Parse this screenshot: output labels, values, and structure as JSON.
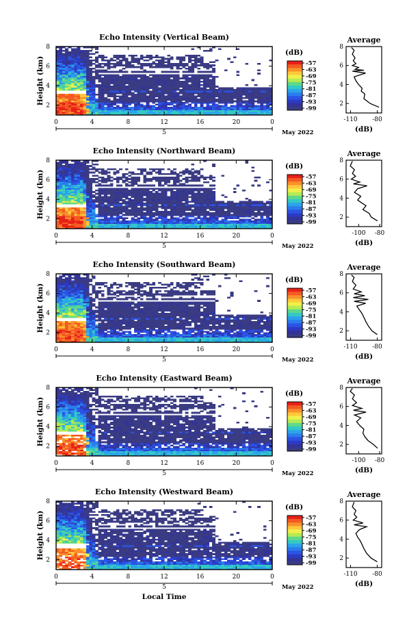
{
  "chart_data": [
    {
      "type": "heatmap",
      "title": "Echo Intensity (Vertical Beam)",
      "ylabel": "Height (km)",
      "xlabel": "",
      "xticks": [
        "0",
        "4",
        "8",
        "12",
        "16",
        "20",
        "0"
      ],
      "xdate": "5",
      "month_label": "May 2022",
      "ylim": [
        1,
        8
      ],
      "yticks": [
        "2",
        "4",
        "6",
        "8"
      ],
      "colorbar": {
        "unit": "(dB)",
        "ticks": [
          "-57",
          "-63",
          "-69",
          "-75",
          "-81",
          "-87",
          "-93",
          "-99"
        ]
      },
      "average": {
        "title": "Average",
        "xlabel": "(dB)",
        "xticks": [
          "-110",
          "-80"
        ],
        "xlim": [
          -115,
          -75
        ],
        "height": [
          1.6,
          2.0,
          2.5,
          3.0,
          3.3,
          3.6,
          4.0,
          4.4,
          4.8,
          5.0,
          5.2,
          5.4,
          5.5,
          5.6,
          5.8,
          6.0,
          6.2,
          6.5,
          6.8,
          7.2,
          7.6,
          7.9
        ],
        "value": [
          -78,
          -88,
          -95,
          -94,
          -98,
          -97,
          -101,
          -104,
          -106,
          -100,
          -93,
          -108,
          -95,
          -105,
          -101,
          -108,
          -104,
          -107,
          -105,
          -108,
          -106,
          -109
        ]
      }
    },
    {
      "type": "heatmap",
      "title": "Echo Intensity (Northward Beam)",
      "ylabel": "Height (km)",
      "xlabel": "",
      "xticks": [
        "0",
        "4",
        "8",
        "12",
        "16",
        "20",
        "0"
      ],
      "xdate": "5",
      "month_label": "May 2022",
      "ylim": [
        1,
        8
      ],
      "yticks": [
        "2",
        "4",
        "6",
        "8"
      ],
      "colorbar": {
        "unit": "(dB)",
        "ticks": [
          "-57",
          "-63",
          "-69",
          "-75",
          "-81",
          "-87",
          "-93",
          "-99"
        ]
      },
      "average": {
        "title": "Average",
        "xlabel": "(dB)",
        "xticks": [
          "-100",
          "-80"
        ],
        "xlim": [
          -112,
          -78
        ],
        "height": [
          1.6,
          2.0,
          2.4,
          2.8,
          3.2,
          3.5,
          3.8,
          4.2,
          4.6,
          5.0,
          5.3,
          5.5,
          5.7,
          6.0,
          6.3,
          6.6,
          7.0,
          7.4,
          7.9
        ],
        "value": [
          -82,
          -88,
          -90,
          -96,
          -93,
          -97,
          -101,
          -98,
          -104,
          -101,
          -92,
          -105,
          -99,
          -107,
          -103,
          -106,
          -104,
          -108,
          -106
        ]
      }
    },
    {
      "type": "heatmap",
      "title": "Echo Intensity (Southward Beam)",
      "ylabel": "Height (km)",
      "xlabel": "",
      "xticks": [
        "0",
        "4",
        "8",
        "12",
        "16",
        "20",
        "0"
      ],
      "xdate": "5",
      "month_label": "May 2022",
      "ylim": [
        1,
        8
      ],
      "yticks": [
        "2",
        "4",
        "6",
        "8"
      ],
      "colorbar": {
        "unit": "(dB)",
        "ticks": [
          "-57",
          "-63",
          "-69",
          "-75",
          "-81",
          "-87",
          "-93",
          "-99"
        ]
      },
      "average": {
        "title": "Average",
        "xlabel": "(dB)",
        "xticks": [
          "-110",
          "-80"
        ],
        "xlim": [
          -115,
          -75
        ],
        "height": [
          1.6,
          2.0,
          2.5,
          3.0,
          3.4,
          3.8,
          4.2,
          4.6,
          4.9,
          5.1,
          5.3,
          5.5,
          5.7,
          5.9,
          6.1,
          6.4,
          6.8,
          7.2,
          7.6,
          7.9
        ],
        "value": [
          -80,
          -86,
          -90,
          -93,
          -95,
          -97,
          -100,
          -103,
          -93,
          -106,
          -90,
          -107,
          -94,
          -106,
          -98,
          -107,
          -104,
          -108,
          -106,
          -109
        ]
      }
    },
    {
      "type": "heatmap",
      "title": "Echo Intensity (Eastward Beam)",
      "ylabel": "Height (km)",
      "xlabel": "",
      "xticks": [
        "0",
        "4",
        "8",
        "12",
        "16",
        "20",
        "0"
      ],
      "xdate": "5",
      "month_label": "May 2022",
      "ylim": [
        1,
        8
      ],
      "yticks": [
        "2",
        "4",
        "6",
        "8"
      ],
      "colorbar": {
        "unit": "(dB)",
        "ticks": [
          "-57",
          "-63",
          "-69",
          "-75",
          "-81",
          "-87",
          "-93",
          "-99"
        ]
      },
      "average": {
        "title": "Average",
        "xlabel": "(dB)",
        "xticks": [
          "-100",
          "-80"
        ],
        "xlim": [
          -112,
          -78
        ],
        "height": [
          1.6,
          2.0,
          2.4,
          2.8,
          3.2,
          3.6,
          4.0,
          4.4,
          4.8,
          5.1,
          5.4,
          5.6,
          5.8,
          6.1,
          6.4,
          6.8,
          7.2,
          7.6,
          7.9
        ],
        "value": [
          -82,
          -86,
          -91,
          -94,
          -96,
          -95,
          -99,
          -102,
          -98,
          -104,
          -93,
          -105,
          -97,
          -106,
          -102,
          -106,
          -104,
          -108,
          -106
        ]
      }
    },
    {
      "type": "heatmap",
      "title": "Echo Intensity (Westward Beam)",
      "ylabel": "Height (km)",
      "xlabel": "Local Time",
      "xticks": [
        "0",
        "4",
        "8",
        "12",
        "16",
        "20",
        "0"
      ],
      "xdate": "5",
      "month_label": "May 2022",
      "ylim": [
        1,
        8
      ],
      "yticks": [
        "2",
        "4",
        "6",
        "8"
      ],
      "colorbar": {
        "unit": "(dB)",
        "ticks": [
          "-57",
          "-63",
          "-69",
          "-75",
          "-81",
          "-87",
          "-93",
          "-99"
        ]
      },
      "average": {
        "title": "Average",
        "xlabel": "(dB)",
        "xticks": [
          "-110",
          "-80"
        ],
        "xlim": [
          -115,
          -75
        ],
        "height": [
          1.6,
          2.0,
          2.5,
          3.0,
          3.4,
          3.8,
          4.2,
          4.6,
          5.0,
          5.3,
          5.5,
          5.7,
          6.0,
          6.3,
          6.6,
          7.0,
          7.4,
          7.9
        ],
        "value": [
          -80,
          -87,
          -92,
          -95,
          -97,
          -99,
          -102,
          -104,
          -100,
          -92,
          -106,
          -96,
          -107,
          -103,
          -106,
          -104,
          -108,
          -106
        ]
      }
    }
  ]
}
